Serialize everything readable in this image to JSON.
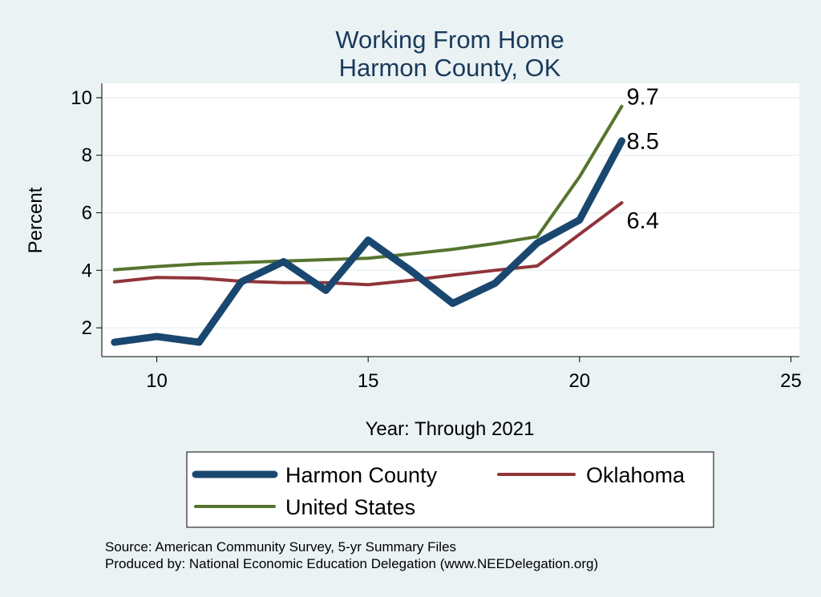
{
  "chart_data": {
    "type": "line",
    "title": [
      "Working From Home",
      "Harmon County, OK"
    ],
    "xlabel": "Year: Through 2021",
    "ylabel": "Percent",
    "xlim": [
      8.7,
      25.2
    ],
    "ylim": [
      1.0,
      10.5
    ],
    "xticks": [
      10,
      15,
      20,
      25
    ],
    "yticks": [
      2,
      4,
      6,
      8,
      10
    ],
    "grid": true,
    "legend_position": "bottom",
    "x": [
      9,
      10,
      11,
      12,
      13,
      14,
      15,
      16,
      17,
      18,
      19,
      20,
      21
    ],
    "series": [
      {
        "name": "Harmon County",
        "color": "#1a476f",
        "width": 9,
        "values": [
          1.5,
          1.7,
          1.5,
          3.6,
          4.3,
          3.3,
          5.05,
          4.0,
          2.85,
          3.55,
          4.95,
          5.75,
          8.5
        ],
        "end_label": "8.5"
      },
      {
        "name": "Oklahoma",
        "color": "#90353b",
        "width": 4,
        "values": [
          3.6,
          3.75,
          3.73,
          3.62,
          3.57,
          3.57,
          3.5,
          3.65,
          3.83,
          4.0,
          4.15,
          5.25,
          6.35
        ],
        "end_label": "6.4"
      },
      {
        "name": "United States",
        "color": "#55752f",
        "width": 4,
        "values": [
          4.02,
          4.13,
          4.22,
          4.27,
          4.32,
          4.37,
          4.42,
          4.57,
          4.73,
          4.93,
          5.17,
          7.25,
          9.7
        ],
        "end_label": "9.7"
      }
    ],
    "notes": [
      "Source: American Community Survey, 5-yr Summary Files",
      "Produced by: National Economic Education Delegation (www.NEEDelegation.org)"
    ]
  }
}
